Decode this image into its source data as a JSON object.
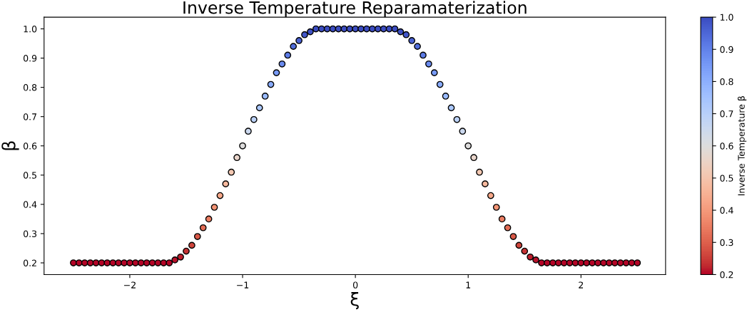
{
  "chart_data": {
    "type": "scatter",
    "title": "Inverse Temperature Reparamaterization",
    "xlabel": "ξ",
    "ylabel": "β",
    "clabel": "Inverse Temperature β",
    "x": [
      -2.5,
      -2.45,
      -2.4,
      -2.35,
      -2.3,
      -2.25,
      -2.2,
      -2.15,
      -2.1,
      -2.05,
      -2.0,
      -1.95,
      -1.9,
      -1.85,
      -1.8,
      -1.75,
      -1.7,
      -1.65,
      -1.6,
      -1.55,
      -1.5,
      -1.45,
      -1.4,
      -1.35,
      -1.3,
      -1.25,
      -1.2,
      -1.15,
      -1.1,
      -1.05,
      -1.0,
      -0.95,
      -0.9,
      -0.85,
      -0.8,
      -0.75,
      -0.7,
      -0.65,
      -0.6,
      -0.55,
      -0.5,
      -0.45,
      -0.4,
      -0.35,
      -0.3,
      -0.25,
      -0.2,
      -0.15,
      -0.1,
      -0.05,
      0.0,
      0.05,
      0.1,
      0.15,
      0.2,
      0.25,
      0.3,
      0.35,
      0.4,
      0.45,
      0.5,
      0.55,
      0.6,
      0.65,
      0.7,
      0.75,
      0.8,
      0.85,
      0.9,
      0.95,
      1.0,
      1.05,
      1.1,
      1.15,
      1.2,
      1.25,
      1.3,
      1.35,
      1.4,
      1.45,
      1.5,
      1.55,
      1.6,
      1.65,
      1.7,
      1.75,
      1.8,
      1.85,
      1.9,
      1.95,
      2.0,
      2.05,
      2.1,
      2.15,
      2.2,
      2.25,
      2.3,
      2.35,
      2.4,
      2.45,
      2.5
    ],
    "values": [
      0.2,
      0.2,
      0.2,
      0.2,
      0.2,
      0.2,
      0.2,
      0.2,
      0.2,
      0.2,
      0.2,
      0.2,
      0.2,
      0.2,
      0.2,
      0.2,
      0.2,
      0.2,
      0.21,
      0.22,
      0.24,
      0.26,
      0.29,
      0.32,
      0.35,
      0.39,
      0.43,
      0.47,
      0.51,
      0.56,
      0.6,
      0.65,
      0.69,
      0.73,
      0.77,
      0.81,
      0.85,
      0.88,
      0.91,
      0.94,
      0.96,
      0.98,
      0.99,
      1.0,
      1.0,
      1.0,
      1.0,
      1.0,
      1.0,
      1.0,
      1.0,
      1.0,
      1.0,
      1.0,
      1.0,
      1.0,
      1.0,
      1.0,
      0.99,
      0.98,
      0.96,
      0.94,
      0.91,
      0.88,
      0.85,
      0.81,
      0.77,
      0.73,
      0.69,
      0.65,
      0.6,
      0.56,
      0.51,
      0.47,
      0.43,
      0.39,
      0.35,
      0.32,
      0.29,
      0.26,
      0.24,
      0.22,
      0.21,
      0.2,
      0.2,
      0.2,
      0.2,
      0.2,
      0.2,
      0.2,
      0.2,
      0.2,
      0.2,
      0.2,
      0.2,
      0.2,
      0.2,
      0.2,
      0.2,
      0.2,
      0.2
    ],
    "cvalues": [
      0.2,
      0.2,
      0.2,
      0.2,
      0.2,
      0.2,
      0.2,
      0.2,
      0.2,
      0.2,
      0.2,
      0.2,
      0.2,
      0.2,
      0.2,
      0.2,
      0.2,
      0.2,
      0.21,
      0.22,
      0.24,
      0.26,
      0.29,
      0.32,
      0.35,
      0.39,
      0.43,
      0.47,
      0.51,
      0.56,
      0.6,
      0.65,
      0.69,
      0.73,
      0.77,
      0.81,
      0.85,
      0.88,
      0.91,
      0.94,
      0.96,
      0.98,
      0.99,
      1.0,
      1.0,
      1.0,
      1.0,
      1.0,
      1.0,
      1.0,
      1.0,
      1.0,
      1.0,
      1.0,
      1.0,
      1.0,
      1.0,
      1.0,
      0.99,
      0.98,
      0.96,
      0.94,
      0.91,
      0.88,
      0.85,
      0.81,
      0.77,
      0.73,
      0.69,
      0.65,
      0.6,
      0.56,
      0.51,
      0.47,
      0.43,
      0.39,
      0.35,
      0.32,
      0.29,
      0.26,
      0.24,
      0.22,
      0.21,
      0.2,
      0.2,
      0.2,
      0.2,
      0.2,
      0.2,
      0.2,
      0.2,
      0.2,
      0.2,
      0.2,
      0.2,
      0.2,
      0.2,
      0.2,
      0.2,
      0.2,
      0.2
    ],
    "xlim": [
      -2.76,
      2.75
    ],
    "ylim": [
      0.16,
      1.04
    ],
    "xticks": [
      {
        "value": -2,
        "label": "−2"
      },
      {
        "value": -1,
        "label": "−1"
      },
      0,
      1,
      2
    ],
    "yticks": [
      {
        "value": 0.2,
        "label": "0.2"
      },
      {
        "value": 0.3,
        "label": "0.3"
      },
      {
        "value": 0.4,
        "label": "0.4"
      },
      {
        "value": 0.5,
        "label": "0.5"
      },
      {
        "value": 0.6,
        "label": "0.6"
      },
      {
        "value": 0.7,
        "label": "0.7"
      },
      {
        "value": 0.8,
        "label": "0.8"
      },
      {
        "value": 0.9,
        "label": "0.9"
      },
      {
        "value": 1.0,
        "label": "1.0"
      }
    ],
    "clim": [
      0.2,
      1.0
    ],
    "cticks": [
      {
        "value": 0.2,
        "label": "0.2"
      },
      {
        "value": 0.3,
        "label": "0.3"
      },
      {
        "value": 0.4,
        "label": "0.4"
      },
      {
        "value": 0.5,
        "label": "0.5"
      },
      {
        "value": 0.6,
        "label": "0.6"
      },
      {
        "value": 0.7,
        "label": "0.7"
      },
      {
        "value": 0.8,
        "label": "0.8"
      },
      {
        "value": 0.9,
        "label": "0.9"
      },
      {
        "value": 1.0,
        "label": "1.0"
      }
    ],
    "marker": "circle",
    "grid": false
  }
}
